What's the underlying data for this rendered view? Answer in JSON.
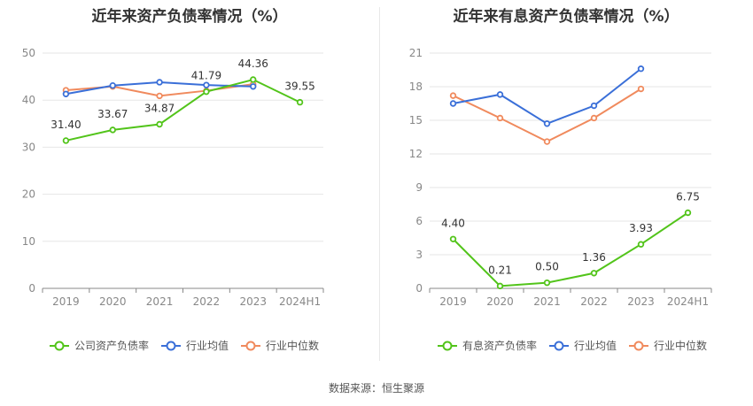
{
  "source_text": "数据来源：恒生聚源",
  "colors": {
    "series_main": "#52c41a",
    "series_avg": "#3a6fd8",
    "series_median": "#f08a5d",
    "grid": "#e6e6e6",
    "axis": "#888888",
    "tick_text": "#888888",
    "label_text": "#333333"
  },
  "chart_data": [
    {
      "type": "line",
      "title": "近年来资产负债率情况（%）",
      "categories": [
        "2019",
        "2020",
        "2021",
        "2022",
        "2023",
        "2024H1"
      ],
      "yticks": [
        "0",
        "10",
        "20",
        "30",
        "40",
        "50"
      ],
      "ylim": [
        0,
        50
      ],
      "grid": true,
      "legend_position": "bottom",
      "series": [
        {
          "name": "公司资产负债率",
          "color": "#52c41a",
          "labels": true,
          "values": [
            31.4,
            33.67,
            34.87,
            41.79,
            44.36,
            39.55
          ],
          "value_labels": [
            "31.40",
            "33.67",
            "34.87",
            "41.79",
            "44.36",
            "39.55"
          ]
        },
        {
          "name": "行业均值",
          "color": "#3a6fd8",
          "labels": false,
          "values": [
            41.3,
            43.1,
            43.8,
            43.2,
            42.9,
            null
          ]
        },
        {
          "name": "行业中位数",
          "color": "#f08a5d",
          "labels": false,
          "values": [
            42.1,
            42.9,
            40.9,
            42.0,
            43.4,
            null
          ]
        }
      ]
    },
    {
      "type": "line",
      "title": "近年来有息资产负债率情况（%）",
      "categories": [
        "2019",
        "2020",
        "2021",
        "2022",
        "2023",
        "2024H1"
      ],
      "yticks": [
        "0",
        "3",
        "6",
        "9",
        "12",
        "15",
        "18",
        "21"
      ],
      "ylim": [
        0,
        21
      ],
      "grid": true,
      "legend_position": "bottom",
      "series": [
        {
          "name": "有息资产负债率",
          "color": "#52c41a",
          "labels": true,
          "values": [
            4.4,
            0.21,
            0.5,
            1.36,
            3.93,
            6.75
          ],
          "value_labels": [
            "4.40",
            "0.21",
            "0.50",
            "1.36",
            "3.93",
            "6.75"
          ]
        },
        {
          "name": "行业均值",
          "color": "#3a6fd8",
          "labels": false,
          "values": [
            16.5,
            17.3,
            14.7,
            16.3,
            19.6,
            null
          ]
        },
        {
          "name": "行业中位数",
          "color": "#f08a5d",
          "labels": false,
          "values": [
            17.2,
            15.2,
            13.1,
            15.2,
            17.8,
            null
          ]
        }
      ]
    }
  ]
}
